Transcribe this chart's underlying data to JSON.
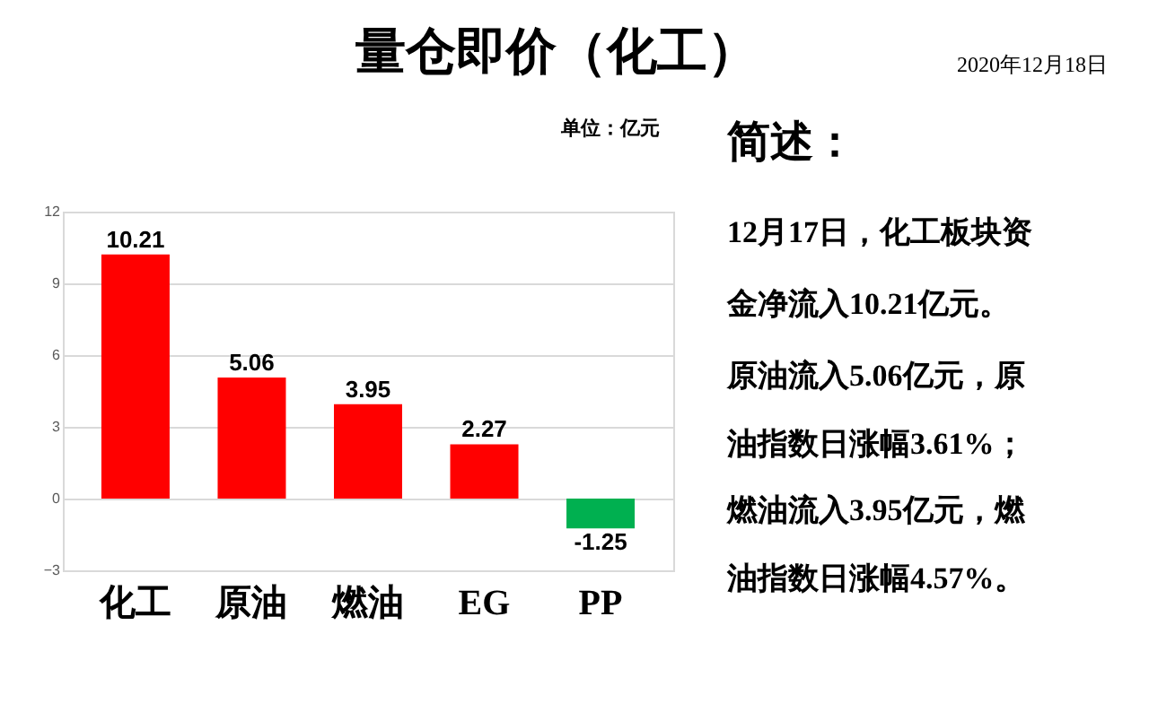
{
  "chart_data": {
    "type": "bar",
    "title": "量仓即价（化工）",
    "categories": [
      "化工",
      "原油",
      "燃油",
      "EG",
      "PP"
    ],
    "values": [
      10.21,
      5.06,
      3.95,
      2.27,
      -1.25
    ],
    "colors": [
      "#ff0000",
      "#ff0000",
      "#ff0000",
      "#ff0000",
      "#00b050"
    ],
    "ylim": [
      -3,
      12
    ],
    "yticks": [
      -3,
      0,
      3,
      6,
      9,
      12
    ],
    "grid": "y",
    "data_labels": true,
    "annotations": [
      "2020年12月18日",
      "单位：亿元",
      "简述：",
      "12月17日，化工板块资",
      "金净流入10.21亿元。",
      "原油流入5.06亿元，原",
      "油指数日涨幅3.61%；",
      "燃油流入3.95亿元，燃",
      "油指数日涨幅4.57%。"
    ]
  }
}
